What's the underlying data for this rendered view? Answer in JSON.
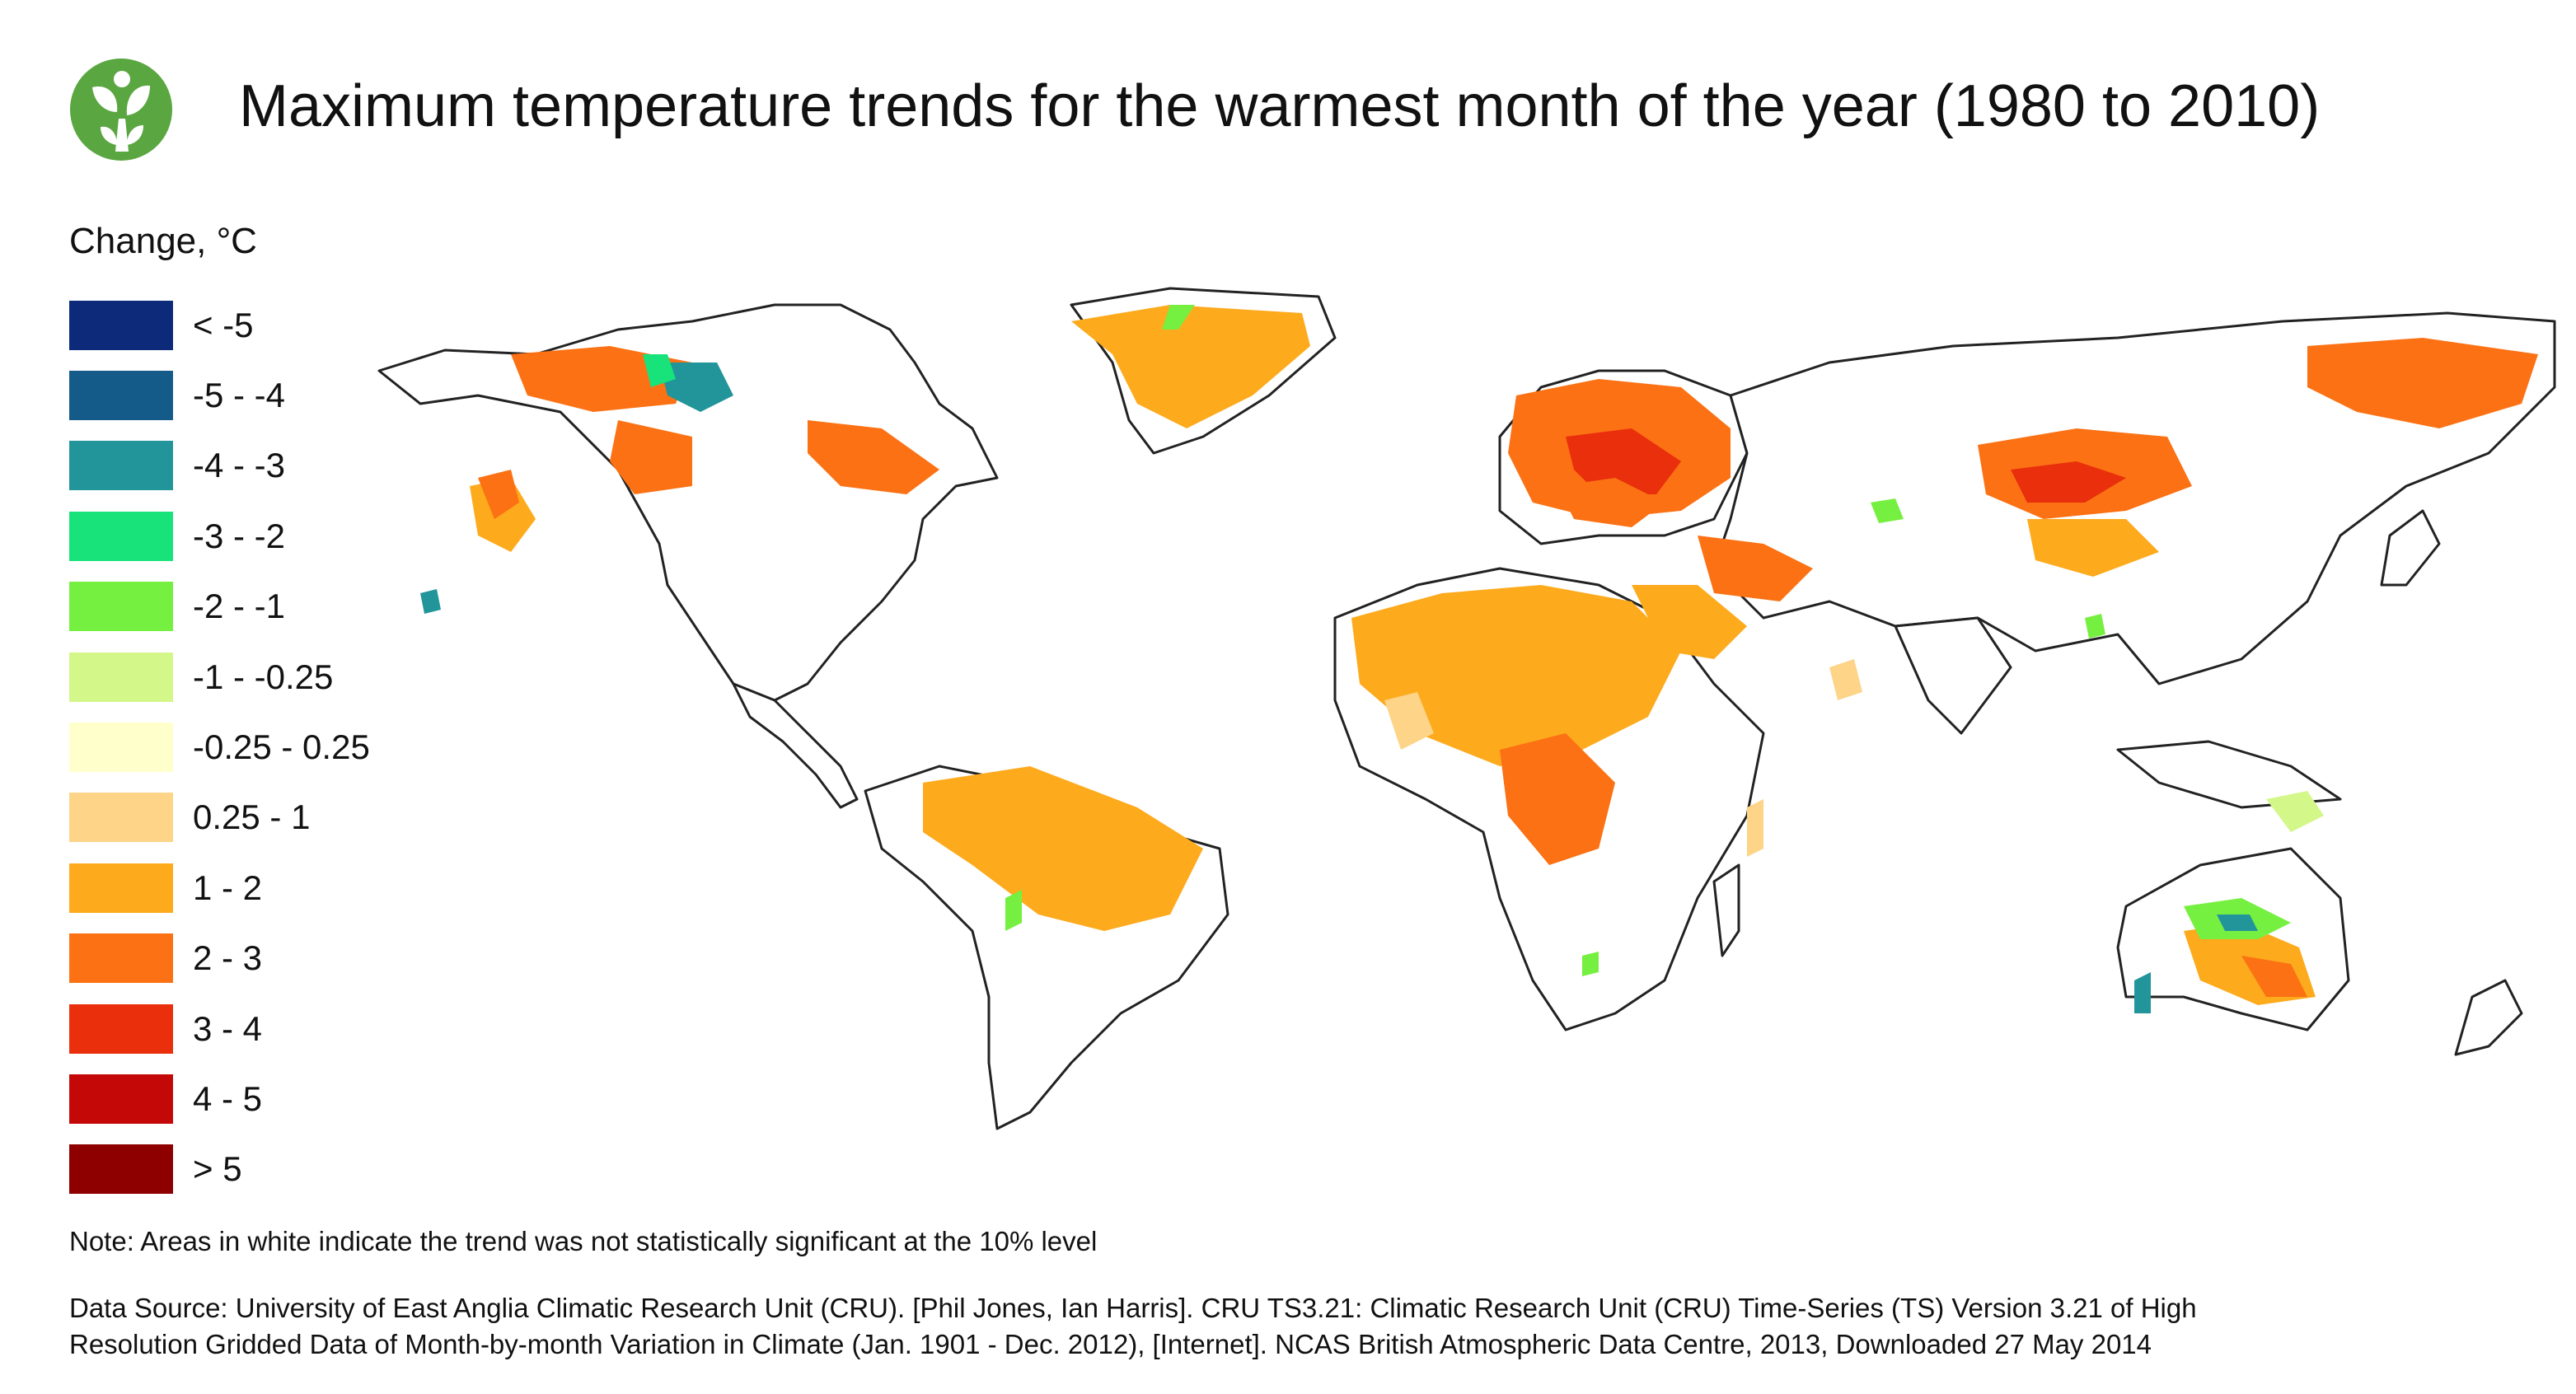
{
  "title": "Maximum temperature trends for the warmest month of the year (1980 to 2010)",
  "logo_icon": "leaf-figure-logo",
  "legend": {
    "title": "Change, °C",
    "items": [
      {
        "label": "< -5",
        "color": "#0d2a7a"
      },
      {
        "label": "-5 - -4",
        "color": "#155b8a"
      },
      {
        "label": "-4 - -3",
        "color": "#22959a"
      },
      {
        "label": "-3 - -2",
        "color": "#18e37b"
      },
      {
        "label": "-2 - -1",
        "color": "#76f040"
      },
      {
        "label": "-1 - -0.25",
        "color": "#d4f78a"
      },
      {
        "label": "-0.25 - 0.25",
        "color": "#ffffcc"
      },
      {
        "label": "0.25 - 1",
        "color": "#fdd488"
      },
      {
        "label": "1 - 2",
        "color": "#fdaa1d"
      },
      {
        "label": "2 - 3",
        "color": "#fb7114"
      },
      {
        "label": "3 - 4",
        "color": "#e92f0c"
      },
      {
        "label": "4 - 5",
        "color": "#c40808"
      },
      {
        "label": "> 5",
        "color": "#8e0000"
      }
    ]
  },
  "note": "Note: Areas in white indicate the trend was not statistically significant at the 10% level",
  "source_line1": "Data Source: University of East Anglia Climatic Research Unit (CRU). [Phil Jones, Ian Harris]. CRU TS3.21: Climatic Research Unit (CRU) Time-Series (TS) Version 3.21 of High",
  "source_line2": "Resolution Gridded Data of Month-by-month Variation in Climate (Jan. 1901 - Dec. 2012), [Internet]. NCAS British Atmospheric Data Centre, 2013, Downloaded 27 May 2014"
}
